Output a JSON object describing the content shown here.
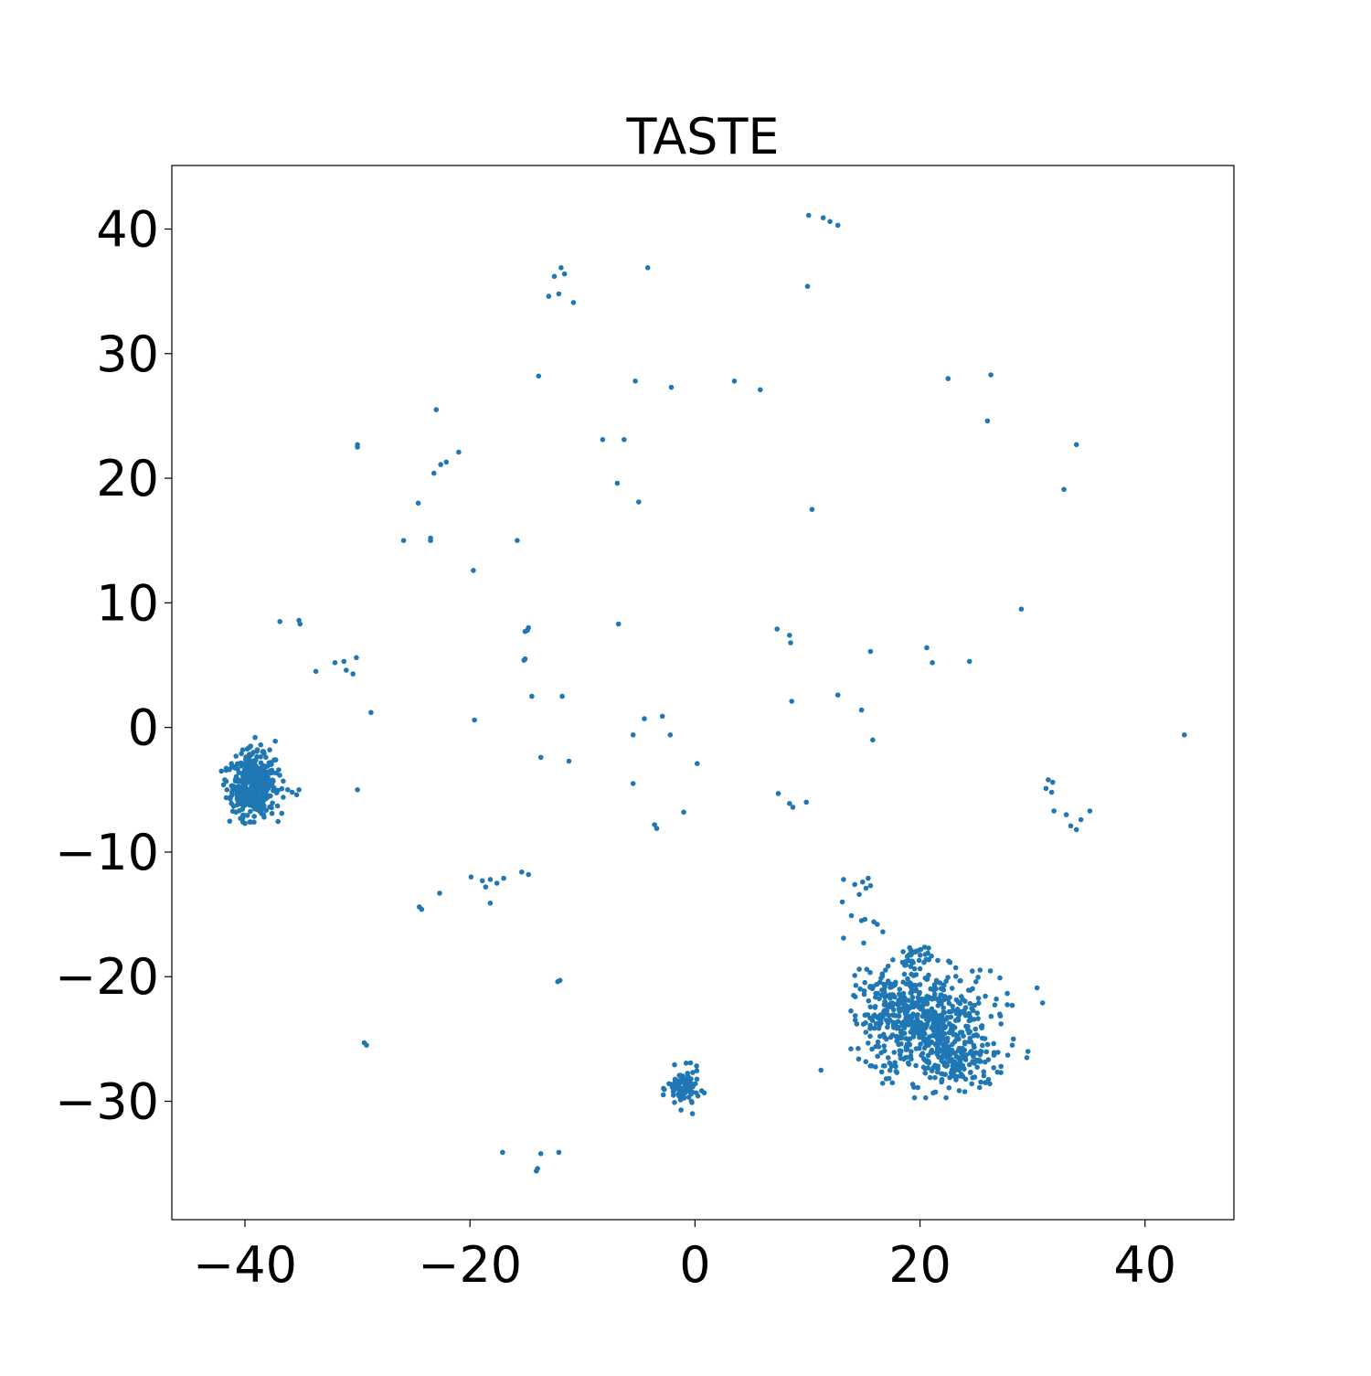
{
  "chart_data": {
    "type": "scatter",
    "title": "TASTE",
    "xlabel": "",
    "ylabel": "",
    "xlim": [
      -46.5,
      47.9
    ],
    "ylim": [
      -39.5,
      45.1
    ],
    "x_ticks": [
      -40,
      -20,
      0,
      20,
      40
    ],
    "x_tick_labels": [
      "−40",
      "−20",
      "0",
      "20",
      "40"
    ],
    "y_ticks": [
      -30,
      -20,
      -10,
      0,
      10,
      20,
      30,
      40
    ],
    "y_tick_labels": [
      "−30",
      "−20",
      "−10",
      "0",
      "10",
      "20",
      "30",
      "40"
    ],
    "grid": false,
    "legend": "none",
    "marker_color": "#1f77b4",
    "series": [
      {
        "points": [
          [
            10.1,
            41.1
          ],
          [
            11.4,
            40.9
          ],
          [
            12.0,
            40.6
          ],
          [
            12.7,
            40.3
          ],
          [
            -4.2,
            36.9
          ],
          [
            -11.9,
            36.9
          ],
          [
            -11.6,
            36.4
          ],
          [
            -12.5,
            36.2
          ],
          [
            -12.1,
            34.8
          ],
          [
            -13.0,
            34.6
          ],
          [
            -10.8,
            34.1
          ],
          [
            10.0,
            35.4
          ],
          [
            -13.9,
            28.2
          ],
          [
            -5.3,
            27.8
          ],
          [
            -2.1,
            27.3
          ],
          [
            3.5,
            27.8
          ],
          [
            5.8,
            27.1
          ],
          [
            22.5,
            28.0
          ],
          [
            26.3,
            28.3
          ],
          [
            26.0,
            24.6
          ],
          [
            -23.0,
            25.5
          ],
          [
            -30.0,
            22.5
          ],
          [
            -30.0,
            22.7
          ],
          [
            -21.0,
            22.1
          ],
          [
            -22.1,
            21.3
          ],
          [
            -22.6,
            21.1
          ],
          [
            -23.2,
            20.4
          ],
          [
            -8.2,
            23.1
          ],
          [
            -6.3,
            23.1
          ],
          [
            -6.9,
            19.6
          ],
          [
            -5.0,
            18.1
          ],
          [
            33.9,
            22.7
          ],
          [
            32.8,
            19.1
          ],
          [
            10.4,
            17.5
          ],
          [
            -24.6,
            18.0
          ],
          [
            -25.9,
            15.0
          ],
          [
            -23.5,
            15.2
          ],
          [
            -23.5,
            15.0
          ],
          [
            -15.8,
            15.0
          ],
          [
            -19.7,
            12.6
          ],
          [
            29.0,
            9.5
          ],
          [
            -36.9,
            8.5
          ],
          [
            -35.2,
            8.6
          ],
          [
            -35.1,
            8.3
          ],
          [
            -14.8,
            8.0
          ],
          [
            -14.9,
            7.8
          ],
          [
            -15.1,
            7.7
          ],
          [
            -6.8,
            8.3
          ],
          [
            7.3,
            7.9
          ],
          [
            8.4,
            7.4
          ],
          [
            8.5,
            6.8
          ],
          [
            -32.0,
            5.2
          ],
          [
            -31.2,
            5.3
          ],
          [
            -30.1,
            5.6
          ],
          [
            -31.0,
            4.6
          ],
          [
            -30.4,
            4.3
          ],
          [
            -33.7,
            4.5
          ],
          [
            -15.2,
            5.4
          ],
          [
            -15.1,
            5.5
          ],
          [
            15.6,
            6.1
          ],
          [
            20.6,
            6.4
          ],
          [
            21.1,
            5.2
          ],
          [
            24.4,
            5.3
          ],
          [
            -14.5,
            2.5
          ],
          [
            -11.8,
            2.5
          ],
          [
            12.7,
            2.6
          ],
          [
            8.6,
            2.1
          ],
          [
            -28.8,
            1.2
          ],
          [
            -19.6,
            0.6
          ],
          [
            -4.5,
            0.7
          ],
          [
            -2.9,
            0.9
          ],
          [
            14.8,
            1.4
          ],
          [
            -5.5,
            -0.6
          ],
          [
            -2.2,
            -0.6
          ],
          [
            15.8,
            -1.0
          ],
          [
            43.5,
            -0.6
          ],
          [
            -13.7,
            -2.4
          ],
          [
            -11.2,
            -2.7
          ],
          [
            0.2,
            -2.9
          ],
          [
            -5.5,
            -4.5
          ],
          [
            -30.0,
            -5.0
          ],
          [
            7.4,
            -5.3
          ],
          [
            8.4,
            -6.1
          ],
          [
            8.7,
            -6.4
          ],
          [
            9.9,
            -6.0
          ],
          [
            -1.0,
            -6.8
          ],
          [
            -3.6,
            -7.8
          ],
          [
            -3.4,
            -8.1
          ],
          [
            31.4,
            -4.2
          ],
          [
            31.8,
            -4.4
          ],
          [
            31.2,
            -4.9
          ],
          [
            31.7,
            -5.2
          ],
          [
            31.9,
            -6.7
          ],
          [
            33.0,
            -7.0
          ],
          [
            33.4,
            -7.9
          ],
          [
            33.9,
            -8.2
          ],
          [
            34.3,
            -7.4
          ],
          [
            35.1,
            -6.7
          ],
          [
            -19.9,
            -12.0
          ],
          [
            -18.9,
            -12.3
          ],
          [
            -18.2,
            -12.2
          ],
          [
            -17.6,
            -12.5
          ],
          [
            -17.0,
            -12.1
          ],
          [
            -15.4,
            -11.6
          ],
          [
            -14.8,
            -11.8
          ],
          [
            -18.6,
            -12.8
          ],
          [
            -18.2,
            -14.1
          ],
          [
            -22.7,
            -13.3
          ],
          [
            -24.5,
            -14.4
          ],
          [
            -24.3,
            -14.6
          ],
          [
            -12.0,
            -20.3
          ],
          [
            -12.2,
            -20.4
          ],
          [
            -29.4,
            -25.3
          ],
          [
            -29.2,
            -25.5
          ],
          [
            11.2,
            -27.5
          ],
          [
            -17.1,
            -34.1
          ],
          [
            -13.7,
            -34.2
          ],
          [
            -12.1,
            -34.1
          ],
          [
            -14.1,
            -35.6
          ],
          [
            -14.0,
            -35.4
          ],
          [
            13.2,
            -12.2
          ],
          [
            14.2,
            -12.6
          ],
          [
            14.9,
            -12.4
          ],
          [
            15.4,
            -12.1
          ],
          [
            15.6,
            -12.7
          ],
          [
            15.2,
            -12.9
          ],
          [
            14.6,
            -13.4
          ],
          [
            13.1,
            -14.0
          ],
          [
            13.9,
            -15.1
          ],
          [
            14.8,
            -15.5
          ],
          [
            15.1,
            -15.4
          ],
          [
            15.9,
            -15.6
          ],
          [
            16.2,
            -15.8
          ],
          [
            16.7,
            -16.4
          ],
          [
            13.2,
            -16.9
          ],
          [
            15.0,
            -17.3
          ],
          [
            14.6,
            -19.4
          ],
          [
            14.2,
            -19.9
          ],
          [
            14.3,
            -20.7
          ],
          [
            14.1,
            -21.5
          ],
          [
            30.4,
            -20.9
          ],
          [
            30.9,
            -22.1
          ],
          [
            28.2,
            -22.3
          ],
          [
            27.1,
            -20.1
          ],
          [
            29.5,
            -26.5
          ],
          [
            29.6,
            -26.0
          ],
          [
            27.8,
            -26.3
          ],
          [
            27.2,
            -27.2
          ],
          [
            28.3,
            -25.0
          ],
          [
            28.2,
            -25.5
          ],
          [
            26.6,
            -26.2
          ],
          [
            25.8,
            -28.5
          ],
          [
            26.2,
            -28.6
          ],
          [
            25.3,
            -28.9
          ],
          [
            24.6,
            -28.6
          ],
          [
            -42.1,
            -3.5
          ],
          [
            -41.8,
            -4.2
          ],
          [
            -41.9,
            -4.6
          ],
          [
            -41.6,
            -5.0
          ],
          [
            -41.2,
            -6.1
          ],
          [
            -40.8,
            -6.8
          ],
          [
            -40.4,
            -7.3
          ],
          [
            -40.0,
            -7.7
          ],
          [
            -39.2,
            -7.6
          ],
          [
            -38.3,
            -7.2
          ],
          [
            -37.6,
            -6.9
          ],
          [
            -37.1,
            -6.3
          ],
          [
            -36.6,
            -5.6
          ],
          [
            -36.2,
            -5.0
          ],
          [
            -36.6,
            -4.3
          ],
          [
            -37.0,
            -3.4
          ],
          [
            -37.4,
            -2.6
          ],
          [
            -37.8,
            -1.8
          ],
          [
            -38.6,
            -1.4
          ],
          [
            -39.5,
            -1.5
          ],
          [
            -40.2,
            -1.8
          ],
          [
            -40.8,
            -2.3
          ],
          [
            -41.2,
            -2.9
          ],
          [
            -39.1,
            -0.8
          ],
          [
            -37.3,
            -1.1
          ],
          [
            -35.2,
            -5.0
          ],
          [
            -35.4,
            -5.4
          ],
          [
            -35.8,
            -5.2
          ]
        ],
        "clusters": [
          {
            "center": [
              -39.2,
              -4.6
            ],
            "spread": [
              0.95,
              1.15
            ],
            "count": 480
          },
          {
            "center": [
              21.0,
              -24.0
            ],
            "spread": [
              2.6,
              2.2
            ],
            "count": 520
          },
          {
            "center": [
              17.5,
              -23.0
            ],
            "spread": [
              1.4,
              1.6
            ],
            "count": 140
          },
          {
            "center": [
              19.5,
              -18.5
            ],
            "spread": [
              0.8,
              0.6
            ],
            "count": 40
          },
          {
            "center": [
              23.5,
              -27.0
            ],
            "spread": [
              1.3,
              0.9
            ],
            "count": 80
          },
          {
            "center": [
              -1.0,
              -29.0
            ],
            "spread": [
              0.7,
              0.8
            ],
            "count": 90
          }
        ]
      }
    ]
  }
}
